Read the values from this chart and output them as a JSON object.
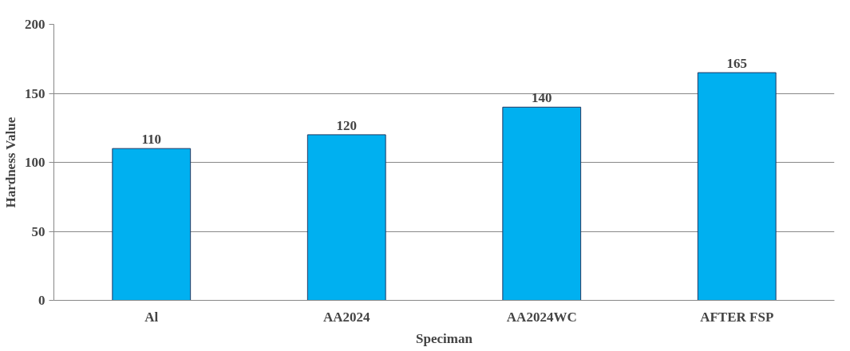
{
  "chart_data": {
    "type": "bar",
    "xlabel": "Speciman",
    "ylabel": "Hardness Value",
    "categories": [
      "Al",
      "AA2024",
      "AA2024WC",
      "AFTER FSP"
    ],
    "values": [
      110,
      120,
      140,
      165
    ],
    "color": "#00b0f0",
    "ylim": [
      0,
      200
    ],
    "yticks": [
      0,
      50,
      100,
      150,
      200
    ],
    "grid": "y",
    "data_labels": true
  }
}
